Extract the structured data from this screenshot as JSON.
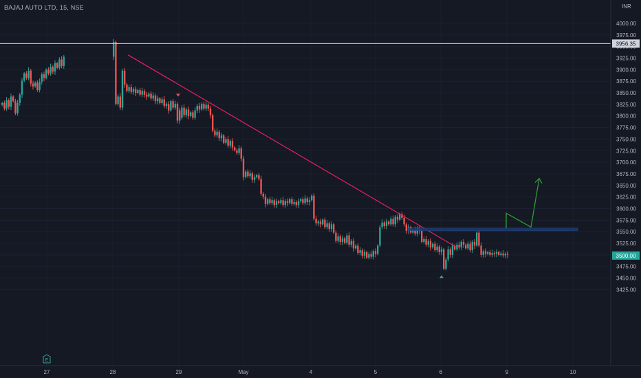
{
  "header": {
    "symbol_title": "BAJAJ AUTO LTD, 15, NSE",
    "currency": "INR"
  },
  "colors": {
    "background": "#151924",
    "up": "#26a69a",
    "down": "#ef5350",
    "trendline": "#e91e63",
    "projection": "#2e9d3a",
    "resistance_zone": "#1e3a5f",
    "axis_text": "#b2b5be"
  },
  "icons": {
    "earnings": "E"
  },
  "chart_data": {
    "type": "candlestick",
    "title": "BAJAJ AUTO LTD, 15, NSE",
    "ylim": [
      3410,
      4020
    ],
    "y_ticks": [
      "4000.00",
      "3975.00",
      "3950.00",
      "3925.00",
      "3900.00",
      "3875.00",
      "3850.00",
      "3825.00",
      "3800.00",
      "3775.00",
      "3750.00",
      "3725.00",
      "3700.00",
      "3675.00",
      "3650.00",
      "3625.00",
      "3600.00",
      "3575.00",
      "3550.00",
      "3525.00",
      "3500.00",
      "3475.00",
      "3450.00",
      "3425.00"
    ],
    "x_ticks": [
      "27",
      "28",
      "29",
      "May",
      "4",
      "5",
      "6",
      "9",
      "10"
    ],
    "close_path": [
      [
        "27",
        3828
      ],
      [
        "27",
        3816
      ],
      [
        "27",
        3834
      ],
      [
        "27",
        3820
      ],
      [
        "27",
        3842
      ],
      [
        "27",
        3832
      ],
      [
        "27",
        3806
      ],
      [
        "27",
        3828
      ],
      [
        "27",
        3846
      ],
      [
        "27",
        3876
      ],
      [
        "27",
        3892
      ],
      [
        "27",
        3882
      ],
      [
        "27",
        3898
      ],
      [
        "27",
        3870
      ],
      [
        "27",
        3864
      ],
      [
        "27",
        3872
      ],
      [
        "27",
        3856
      ],
      [
        "27",
        3874
      ],
      [
        "27",
        3890
      ],
      [
        "27",
        3882
      ],
      [
        "27",
        3900
      ],
      [
        "27",
        3892
      ],
      [
        "27",
        3906
      ],
      [
        "27",
        3896
      ],
      [
        "27",
        3914
      ],
      [
        "27",
        3904
      ],
      [
        "27",
        3922
      ],
      [
        "27",
        3908
      ],
      [
        "27",
        3928
      ],
      [
        "28",
        3960
      ],
      [
        "28",
        3826
      ],
      [
        "28",
        3842
      ],
      [
        "28",
        3818
      ],
      [
        "28",
        3898
      ],
      [
        "28",
        3868
      ],
      [
        "28",
        3854
      ],
      [
        "28",
        3862
      ],
      [
        "28",
        3852
      ],
      [
        "28",
        3858
      ],
      [
        "28",
        3850
      ],
      [
        "28",
        3856
      ],
      [
        "28",
        3846
      ],
      [
        "28",
        3854
      ],
      [
        "28",
        3846
      ],
      [
        "28",
        3842
      ],
      [
        "28",
        3848
      ],
      [
        "28",
        3838
      ],
      [
        "28",
        3844
      ],
      [
        "28",
        3832
      ],
      [
        "28",
        3838
      ],
      [
        "28",
        3828
      ],
      [
        "28",
        3836
      ],
      [
        "28",
        3822
      ],
      [
        "28",
        3826
      ],
      [
        "28",
        3812
      ],
      [
        "28",
        3832
      ],
      [
        "28",
        3818
      ],
      [
        "28",
        3826
      ],
      [
        "28",
        3790
      ],
      [
        "28",
        3812
      ],
      [
        "29",
        3796
      ],
      [
        "29",
        3818
      ],
      [
        "29",
        3802
      ],
      [
        "29",
        3814
      ],
      [
        "29",
        3800
      ],
      [
        "29",
        3808
      ],
      [
        "29",
        3796
      ],
      [
        "29",
        3812
      ],
      [
        "29",
        3822
      ],
      [
        "29",
        3814
      ],
      [
        "29",
        3826
      ],
      [
        "29",
        3816
      ],
      [
        "29",
        3824
      ],
      [
        "29",
        3816
      ],
      [
        "29",
        3802
      ],
      [
        "29",
        3768
      ],
      [
        "29",
        3758
      ],
      [
        "29",
        3766
      ],
      [
        "29",
        3752
      ],
      [
        "29",
        3758
      ],
      [
        "29",
        3742
      ],
      [
        "29",
        3750
      ],
      [
        "29",
        3736
      ],
      [
        "29",
        3746
      ],
      [
        "29",
        3732
      ],
      [
        "29",
        3726
      ],
      [
        "29",
        3720
      ],
      [
        "29",
        3730
      ],
      [
        "29",
        3708
      ],
      [
        "29",
        3668
      ],
      [
        "May",
        3680
      ],
      [
        "May",
        3670
      ],
      [
        "May",
        3676
      ],
      [
        "May",
        3662
      ],
      [
        "May",
        3668
      ],
      [
        "May",
        3672
      ],
      [
        "May",
        3664
      ],
      [
        "May",
        3632
      ],
      [
        "May",
        3626
      ],
      [
        "May",
        3610
      ],
      [
        "May",
        3620
      ],
      [
        "May",
        3612
      ],
      [
        "May",
        3618
      ],
      [
        "May",
        3608
      ],
      [
        "May",
        3616
      ],
      [
        "May",
        3612
      ],
      [
        "May",
        3618
      ],
      [
        "May",
        3608
      ],
      [
        "May",
        3616
      ],
      [
        "May",
        3612
      ],
      [
        "May",
        3620
      ],
      [
        "May",
        3610
      ],
      [
        "May",
        3614
      ],
      [
        "May",
        3608
      ],
      [
        "May",
        3616
      ],
      [
        "May",
        3620
      ],
      [
        "May",
        3612
      ],
      [
        "May",
        3622
      ],
      [
        "May",
        3614
      ],
      [
        "May",
        3618
      ],
      [
        "4",
        3628
      ],
      [
        "4",
        3578
      ],
      [
        "4",
        3568
      ],
      [
        "4",
        3572
      ],
      [
        "4",
        3566
      ],
      [
        "4",
        3576
      ],
      [
        "4",
        3560
      ],
      [
        "4",
        3568
      ],
      [
        "4",
        3556
      ],
      [
        "4",
        3566
      ],
      [
        "4",
        3548
      ],
      [
        "4",
        3530
      ],
      [
        "4",
        3540
      ],
      [
        "4",
        3528
      ],
      [
        "4",
        3536
      ],
      [
        "4",
        3526
      ],
      [
        "4",
        3542
      ],
      [
        "4",
        3522
      ],
      [
        "4",
        3530
      ],
      [
        "4",
        3514
      ],
      [
        "4",
        3520
      ],
      [
        "4",
        3504
      ],
      [
        "4",
        3510
      ],
      [
        "4",
        3498
      ],
      [
        "4",
        3506
      ],
      [
        "4",
        3494
      ],
      [
        "4",
        3502
      ],
      [
        "4",
        3496
      ],
      [
        "4",
        3508
      ],
      [
        "4",
        3502
      ],
      [
        "5",
        3520
      ],
      [
        "5",
        3560
      ],
      [
        "5",
        3570
      ],
      [
        "5",
        3562
      ],
      [
        "5",
        3572
      ],
      [
        "5",
        3566
      ],
      [
        "5",
        3578
      ],
      [
        "5",
        3566
      ],
      [
        "5",
        3582
      ],
      [
        "5",
        3576
      ],
      [
        "5",
        3588
      ],
      [
        "5",
        3580
      ],
      [
        "5",
        3566
      ],
      [
        "5",
        3552
      ],
      [
        "5",
        3560
      ],
      [
        "5",
        3548
      ],
      [
        "5",
        3554
      ],
      [
        "5",
        3546
      ],
      [
        "5",
        3558
      ],
      [
        "5",
        3552
      ],
      [
        "5",
        3528
      ],
      [
        "5",
        3534
      ],
      [
        "5",
        3522
      ],
      [
        "5",
        3530
      ],
      [
        "5",
        3516
      ],
      [
        "5",
        3524
      ],
      [
        "5",
        3510
      ],
      [
        "5",
        3518
      ],
      [
        "5",
        3506
      ],
      [
        "5",
        3512
      ],
      [
        "6",
        3470
      ],
      [
        "6",
        3490
      ],
      [
        "6",
        3512
      ],
      [
        "6",
        3500
      ],
      [
        "6",
        3520
      ],
      [
        "6",
        3512
      ],
      [
        "6",
        3522
      ],
      [
        "6",
        3516
      ],
      [
        "6",
        3528
      ],
      [
        "6",
        3522
      ],
      [
        "6",
        3514
      ],
      [
        "6",
        3524
      ],
      [
        "6",
        3510
      ],
      [
        "6",
        3528
      ],
      [
        "6",
        3520
      ],
      [
        "6",
        3548
      ],
      [
        "6",
        3520
      ],
      [
        "6",
        3500
      ],
      [
        "6",
        3508
      ],
      [
        "6",
        3502
      ],
      [
        "6",
        3506
      ],
      [
        "6",
        3500
      ],
      [
        "6",
        3504
      ],
      [
        "6",
        3502
      ],
      [
        "6",
        3506
      ],
      [
        "6",
        3500
      ],
      [
        "6",
        3503
      ],
      [
        "6",
        3499
      ],
      [
        "6",
        3502
      ],
      [
        "6",
        3500
      ]
    ],
    "horizontal_line": {
      "value": 3956.35,
      "label": "3956.35"
    },
    "last_price": {
      "value": 3500,
      "label": "3500.00"
    },
    "trendline": {
      "from": [
        "28",
        3932
      ],
      "to": [
        "6",
        3518
      ]
    },
    "resistance_zone": {
      "from": [
        "6",
        3558
      ],
      "to": [
        "9",
        3552
      ]
    },
    "projection_path": [
      [
        "9",
        3590
      ],
      [
        "9",
        3560
      ],
      [
        "9",
        3665
      ]
    ],
    "markers": [
      {
        "type": "arrow-down",
        "at": [
          "28",
          3842
        ]
      },
      {
        "type": "arrow-up",
        "at": [
          "6",
          3456
        ]
      },
      {
        "type": "earnings",
        "at": [
          "27",
          3431
        ]
      }
    ]
  }
}
